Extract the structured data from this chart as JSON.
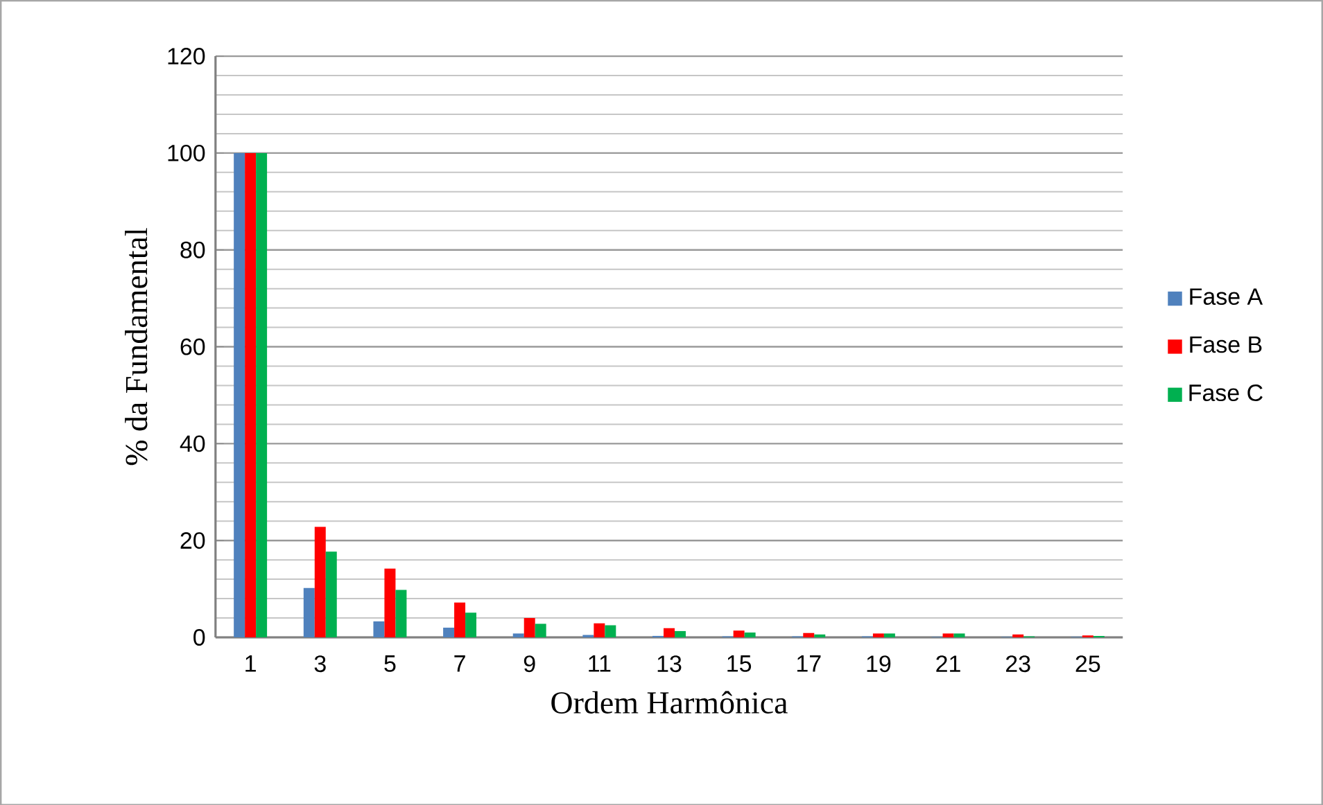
{
  "chart_data": {
    "type": "bar",
    "xlabel": "Ordem Harmônica",
    "ylabel": "% da Fundamental",
    "categories": [
      "1",
      "3",
      "5",
      "7",
      "9",
      "11",
      "13",
      "15",
      "17",
      "19",
      "21",
      "23",
      "25"
    ],
    "series": [
      {
        "name": "Fase A",
        "color": "#4f81bd",
        "values": [
          100,
          10.2,
          3.3,
          2.0,
          0.8,
          0.5,
          0.3,
          0.2,
          0.2,
          0.2,
          0.1,
          0.1,
          0.1
        ]
      },
      {
        "name": "Fase B",
        "color": "#ff0000",
        "values": [
          100,
          22.8,
          14.2,
          7.2,
          4.0,
          2.9,
          1.9,
          1.4,
          0.9,
          0.8,
          0.8,
          0.6,
          0.4
        ]
      },
      {
        "name": "Fase C",
        "color": "#00b050",
        "values": [
          100,
          17.7,
          9.8,
          5.1,
          2.8,
          2.5,
          1.3,
          1.0,
          0.6,
          0.8,
          0.8,
          0.2,
          0.3
        ]
      }
    ],
    "ylim": [
      0,
      120
    ],
    "yticks": [
      0,
      20,
      40,
      60,
      80,
      100,
      120
    ],
    "grid": "y",
    "legend": "right"
  }
}
